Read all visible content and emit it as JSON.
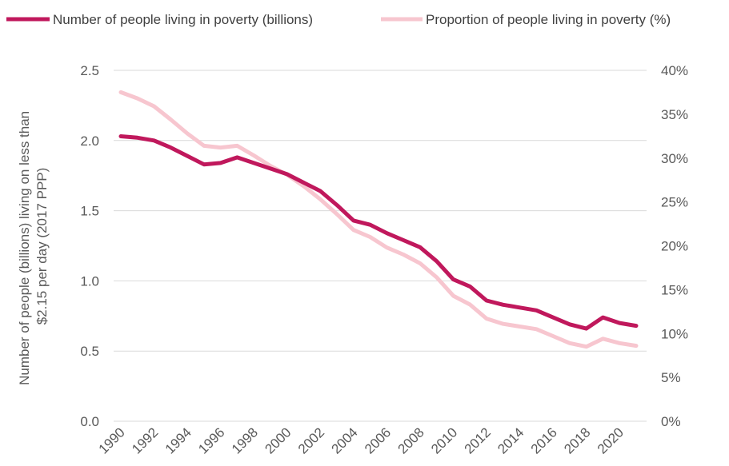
{
  "chart_data": {
    "type": "line",
    "title": "",
    "ylabel_lines": [
      "Number of people (billions) living on less than",
      "$2.15 per day (2017 PPP)"
    ],
    "xlabel": "",
    "x": [
      1990,
      1991,
      1992,
      1993,
      1994,
      1995,
      1996,
      1997,
      1998,
      1999,
      2000,
      2001,
      2002,
      2003,
      2004,
      2005,
      2006,
      2007,
      2008,
      2009,
      2010,
      2011,
      2012,
      2013,
      2014,
      2015,
      2016,
      2017,
      2018,
      2019,
      2020,
      2021
    ],
    "x_tick_labels": [
      "1990",
      "1992",
      "1994",
      "1996",
      "1998",
      "2000",
      "2002",
      "2004",
      "2006",
      "2008",
      "2010",
      "2012",
      "2014",
      "2016",
      "2018",
      "2020"
    ],
    "y_left_ticks": [
      "0.0",
      "0.5",
      "1.0",
      "1.5",
      "2.0",
      "2.5"
    ],
    "y_left_lim": [
      0,
      2.5
    ],
    "y_right_ticks": [
      "0%",
      "5%",
      "10%",
      "15%",
      "20%",
      "25%",
      "30%",
      "35%",
      "40%"
    ],
    "y_right_lim": [
      0,
      40
    ],
    "grid": "horizontal",
    "legend_position": "top",
    "series": [
      {
        "name": "Number of people living in poverty (billions)",
        "axis": "left",
        "color": "#c0185c",
        "values": [
          2.03,
          2.02,
          2.0,
          1.95,
          1.89,
          1.83,
          1.84,
          1.88,
          1.84,
          1.8,
          1.76,
          1.7,
          1.64,
          1.54,
          1.43,
          1.4,
          1.34,
          1.29,
          1.24,
          1.14,
          1.01,
          0.96,
          0.86,
          0.83,
          0.81,
          0.79,
          0.74,
          0.69,
          0.66,
          0.74,
          0.7,
          0.68
        ]
      },
      {
        "name": "Proportion of people living in poverty (%)",
        "axis": "right",
        "color": "#f7c6cf",
        "values": [
          37.5,
          36.8,
          35.9,
          34.4,
          32.8,
          31.4,
          31.2,
          31.4,
          30.3,
          29.1,
          28.1,
          26.8,
          25.3,
          23.6,
          21.8,
          21.0,
          19.8,
          19.0,
          18.0,
          16.4,
          14.3,
          13.3,
          11.7,
          11.1,
          10.8,
          10.5,
          9.7,
          8.9,
          8.5,
          9.4,
          8.9,
          8.6
        ]
      }
    ]
  }
}
